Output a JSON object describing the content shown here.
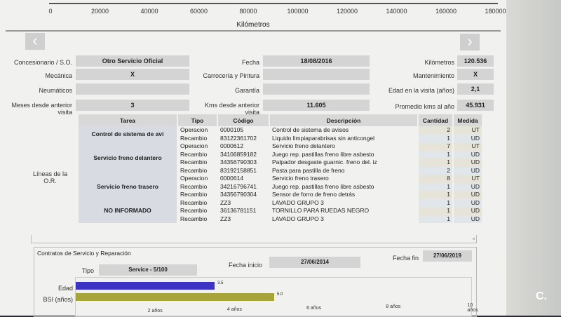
{
  "km_axis": {
    "label": "Kilómetros",
    "ticks": [
      "0",
      "20000",
      "40000",
      "60000",
      "80000",
      "100000",
      "120000",
      "140000",
      "160000",
      "180000"
    ]
  },
  "nav": {
    "prev": "‹",
    "next": "›"
  },
  "form": {
    "concesionario": {
      "label": "Concesionario / S.O.",
      "value": "Otro Servicio Oficial"
    },
    "fecha": {
      "label": "Fecha",
      "value": "18/08/2016"
    },
    "kilometros": {
      "label": "Kilómetros",
      "value": "120.536"
    },
    "mecanica": {
      "label": "Mecánica",
      "value": "X"
    },
    "carroceria": {
      "label": "Carrocería y Pintura",
      "value": ""
    },
    "mantenimiento": {
      "label": "Mantenimiento",
      "value": "X"
    },
    "neumaticos": {
      "label": "Neumáticos",
      "value": ""
    },
    "garantia": {
      "label": "Garantía",
      "value": ""
    },
    "edad": {
      "label": "Edad en la visita (años)",
      "value": "2,1"
    },
    "meses": {
      "label": "Meses desde anterior visita",
      "value": "3"
    },
    "kms_desde": {
      "label": "Kms desde anterior visita",
      "value": "11.605"
    },
    "promedio": {
      "label": "Promedio kms al año",
      "value": "45.931"
    }
  },
  "lines": {
    "label": "Líneas de la O.R.",
    "headers": [
      "Tarea",
      "Tipo",
      "Código",
      "Descripción",
      "Cantidad",
      "Medida"
    ],
    "groups": [
      {
        "tarea": "Control de sistema de avi",
        "rows": [
          [
            "Operacion",
            "0000105",
            "Control de sistema de avisos",
            "2",
            "UT"
          ],
          [
            "Recambio",
            "83122361702",
            "Liquido limpiaparabrisas sin anticongel",
            "1",
            "UD"
          ]
        ]
      },
      {
        "tarea": "Servicio freno delantero",
        "rows": [
          [
            "Operacion",
            "0000612",
            "Servicio freno delantero",
            "7",
            "UT"
          ],
          [
            "Recambio",
            "34106859182",
            "Juego rep. pastillas freno libre asbesto",
            "1",
            "UD"
          ],
          [
            "Recambio",
            "34356790303",
            "Palpador desgaste guarnic. freno del. iz",
            "1",
            "UD"
          ],
          [
            "Recambio",
            "83192158851",
            "Pasta para pastilla de freno",
            "2",
            "UD"
          ]
        ]
      },
      {
        "tarea": "Servicio freno trasero",
        "rows": [
          [
            "Operacion",
            "0000614",
            "Servicio freno trasero",
            "8",
            "UT"
          ],
          [
            "Recambio",
            "34216796741",
            "Juego rep. pastillas freno libre asbesto",
            "1",
            "UD"
          ],
          [
            "Recambio",
            "34356790304",
            "Sensor de forro de freno detrás",
            "1",
            "UD"
          ]
        ]
      },
      {
        "tarea": "NO INFORMADO",
        "rows": [
          [
            "Recambio",
            "ZZ3",
            "LAVADO GRUPO 3",
            "1",
            "UD"
          ],
          [
            "Recambio",
            "36136781151",
            "TORNILLO PARA RUEDAS NEGRO",
            "1",
            "UD"
          ],
          [
            "Recambio",
            "ZZ3",
            "LAVADO GRUPO 3",
            "1",
            "UD"
          ]
        ]
      }
    ]
  },
  "contracts": {
    "title": "Contratos de Servicio y Reparación",
    "tipo_label": "Tipo",
    "tipo": "Service - 5/100",
    "inicio_label": "Fecha inicio",
    "inicio": "27/06/2014",
    "fin_label": "Fecha fin",
    "fin": "27/06/2019",
    "collapse": "▫"
  },
  "chart_data": {
    "type": "bar",
    "orientation": "horizontal",
    "categories": [
      "Edad",
      "BSI (años)"
    ],
    "values": [
      3.5,
      5.0
    ],
    "value_labels": [
      "3.5",
      "5.0"
    ],
    "colors": [
      "#3b34c4",
      "#a8a43c"
    ],
    "xlim": [
      0,
      10
    ],
    "ticks": [
      "2 años",
      "4 años",
      "6 años",
      "8 años",
      "10 años"
    ]
  },
  "watermark": "C."
}
